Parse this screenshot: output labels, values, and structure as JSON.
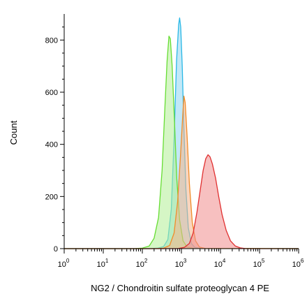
{
  "chart_data": {
    "type": "area",
    "xlabel": "NG2 / Chondroitin sulfate proteoglycan 4 PE",
    "ylabel": "Count",
    "xscale": "log",
    "xlim": [
      1,
      1000000
    ],
    "ylim": [
      0,
      900
    ],
    "x_ticks": [
      {
        "value": 1,
        "base": "10",
        "exp": "0"
      },
      {
        "value": 10,
        "base": "10",
        "exp": "1"
      },
      {
        "value": 100,
        "base": "10",
        "exp": "2"
      },
      {
        "value": 1000,
        "base": "10",
        "exp": "3"
      },
      {
        "value": 10000,
        "base": "10",
        "exp": "4"
      },
      {
        "value": 100000,
        "base": "10",
        "exp": "5"
      },
      {
        "value": 1000000,
        "base": "10",
        "exp": "6"
      }
    ],
    "y_ticks": [
      {
        "value": 0,
        "label": "0"
      },
      {
        "value": 200,
        "label": "200"
      },
      {
        "value": 400,
        "label": "400"
      },
      {
        "value": 600,
        "label": "600"
      },
      {
        "value": 800,
        "label": "800"
      }
    ],
    "grid": false,
    "legend": "none",
    "series": [
      {
        "color": "#29b8e6",
        "fill": "#8fd6f0",
        "points": [
          [
            1,
            0
          ],
          [
            150,
            0
          ],
          [
            250,
            2
          ],
          [
            350,
            8
          ],
          [
            450,
            35
          ],
          [
            550,
            150
          ],
          [
            650,
            420
          ],
          [
            750,
            720
          ],
          [
            850,
            860
          ],
          [
            900,
            885
          ],
          [
            960,
            850
          ],
          [
            1050,
            700
          ],
          [
            1150,
            480
          ],
          [
            1300,
            230
          ],
          [
            1500,
            80
          ],
          [
            1800,
            20
          ],
          [
            2200,
            5
          ],
          [
            3000,
            1
          ],
          [
            1000000,
            0
          ]
        ]
      },
      {
        "color": "#66dd33",
        "fill": "#b3ef96",
        "points": [
          [
            1,
            0
          ],
          [
            60,
            0
          ],
          [
            100,
            2
          ],
          [
            150,
            10
          ],
          [
            200,
            40
          ],
          [
            260,
            120
          ],
          [
            320,
            300
          ],
          [
            380,
            550
          ],
          [
            430,
            720
          ],
          [
            480,
            815
          ],
          [
            520,
            805
          ],
          [
            580,
            700
          ],
          [
            660,
            500
          ],
          [
            760,
            270
          ],
          [
            900,
            110
          ],
          [
            1100,
            30
          ],
          [
            1400,
            6
          ],
          [
            2000,
            1
          ],
          [
            1000000,
            0
          ]
        ]
      },
      {
        "color": "#f08c2a",
        "fill": "#f5b58a",
        "points": [
          [
            1,
            0
          ],
          [
            200,
            0
          ],
          [
            350,
            2
          ],
          [
            500,
            12
          ],
          [
            650,
            60
          ],
          [
            800,
            180
          ],
          [
            950,
            360
          ],
          [
            1080,
            510
          ],
          [
            1160,
            585
          ],
          [
            1250,
            560
          ],
          [
            1400,
            430
          ],
          [
            1600,
            250
          ],
          [
            1900,
            100
          ],
          [
            2300,
            30
          ],
          [
            2900,
            6
          ],
          [
            4000,
            1
          ],
          [
            1000000,
            0
          ]
        ]
      },
      {
        "color": "#e03030",
        "fill": "#f08c8c",
        "points": [
          [
            1,
            0
          ],
          [
            800,
            0
          ],
          [
            1200,
            5
          ],
          [
            1600,
            20
          ],
          [
            2000,
            60
          ],
          [
            2500,
            140
          ],
          [
            3000,
            220
          ],
          [
            3600,
            300
          ],
          [
            4200,
            345
          ],
          [
            4800,
            360
          ],
          [
            5400,
            352
          ],
          [
            6200,
            325
          ],
          [
            7500,
            270
          ],
          [
            9000,
            200
          ],
          [
            11000,
            130
          ],
          [
            14000,
            70
          ],
          [
            18000,
            30
          ],
          [
            24000,
            10
          ],
          [
            32000,
            3
          ],
          [
            45000,
            0
          ],
          [
            1000000,
            0
          ]
        ]
      }
    ]
  }
}
